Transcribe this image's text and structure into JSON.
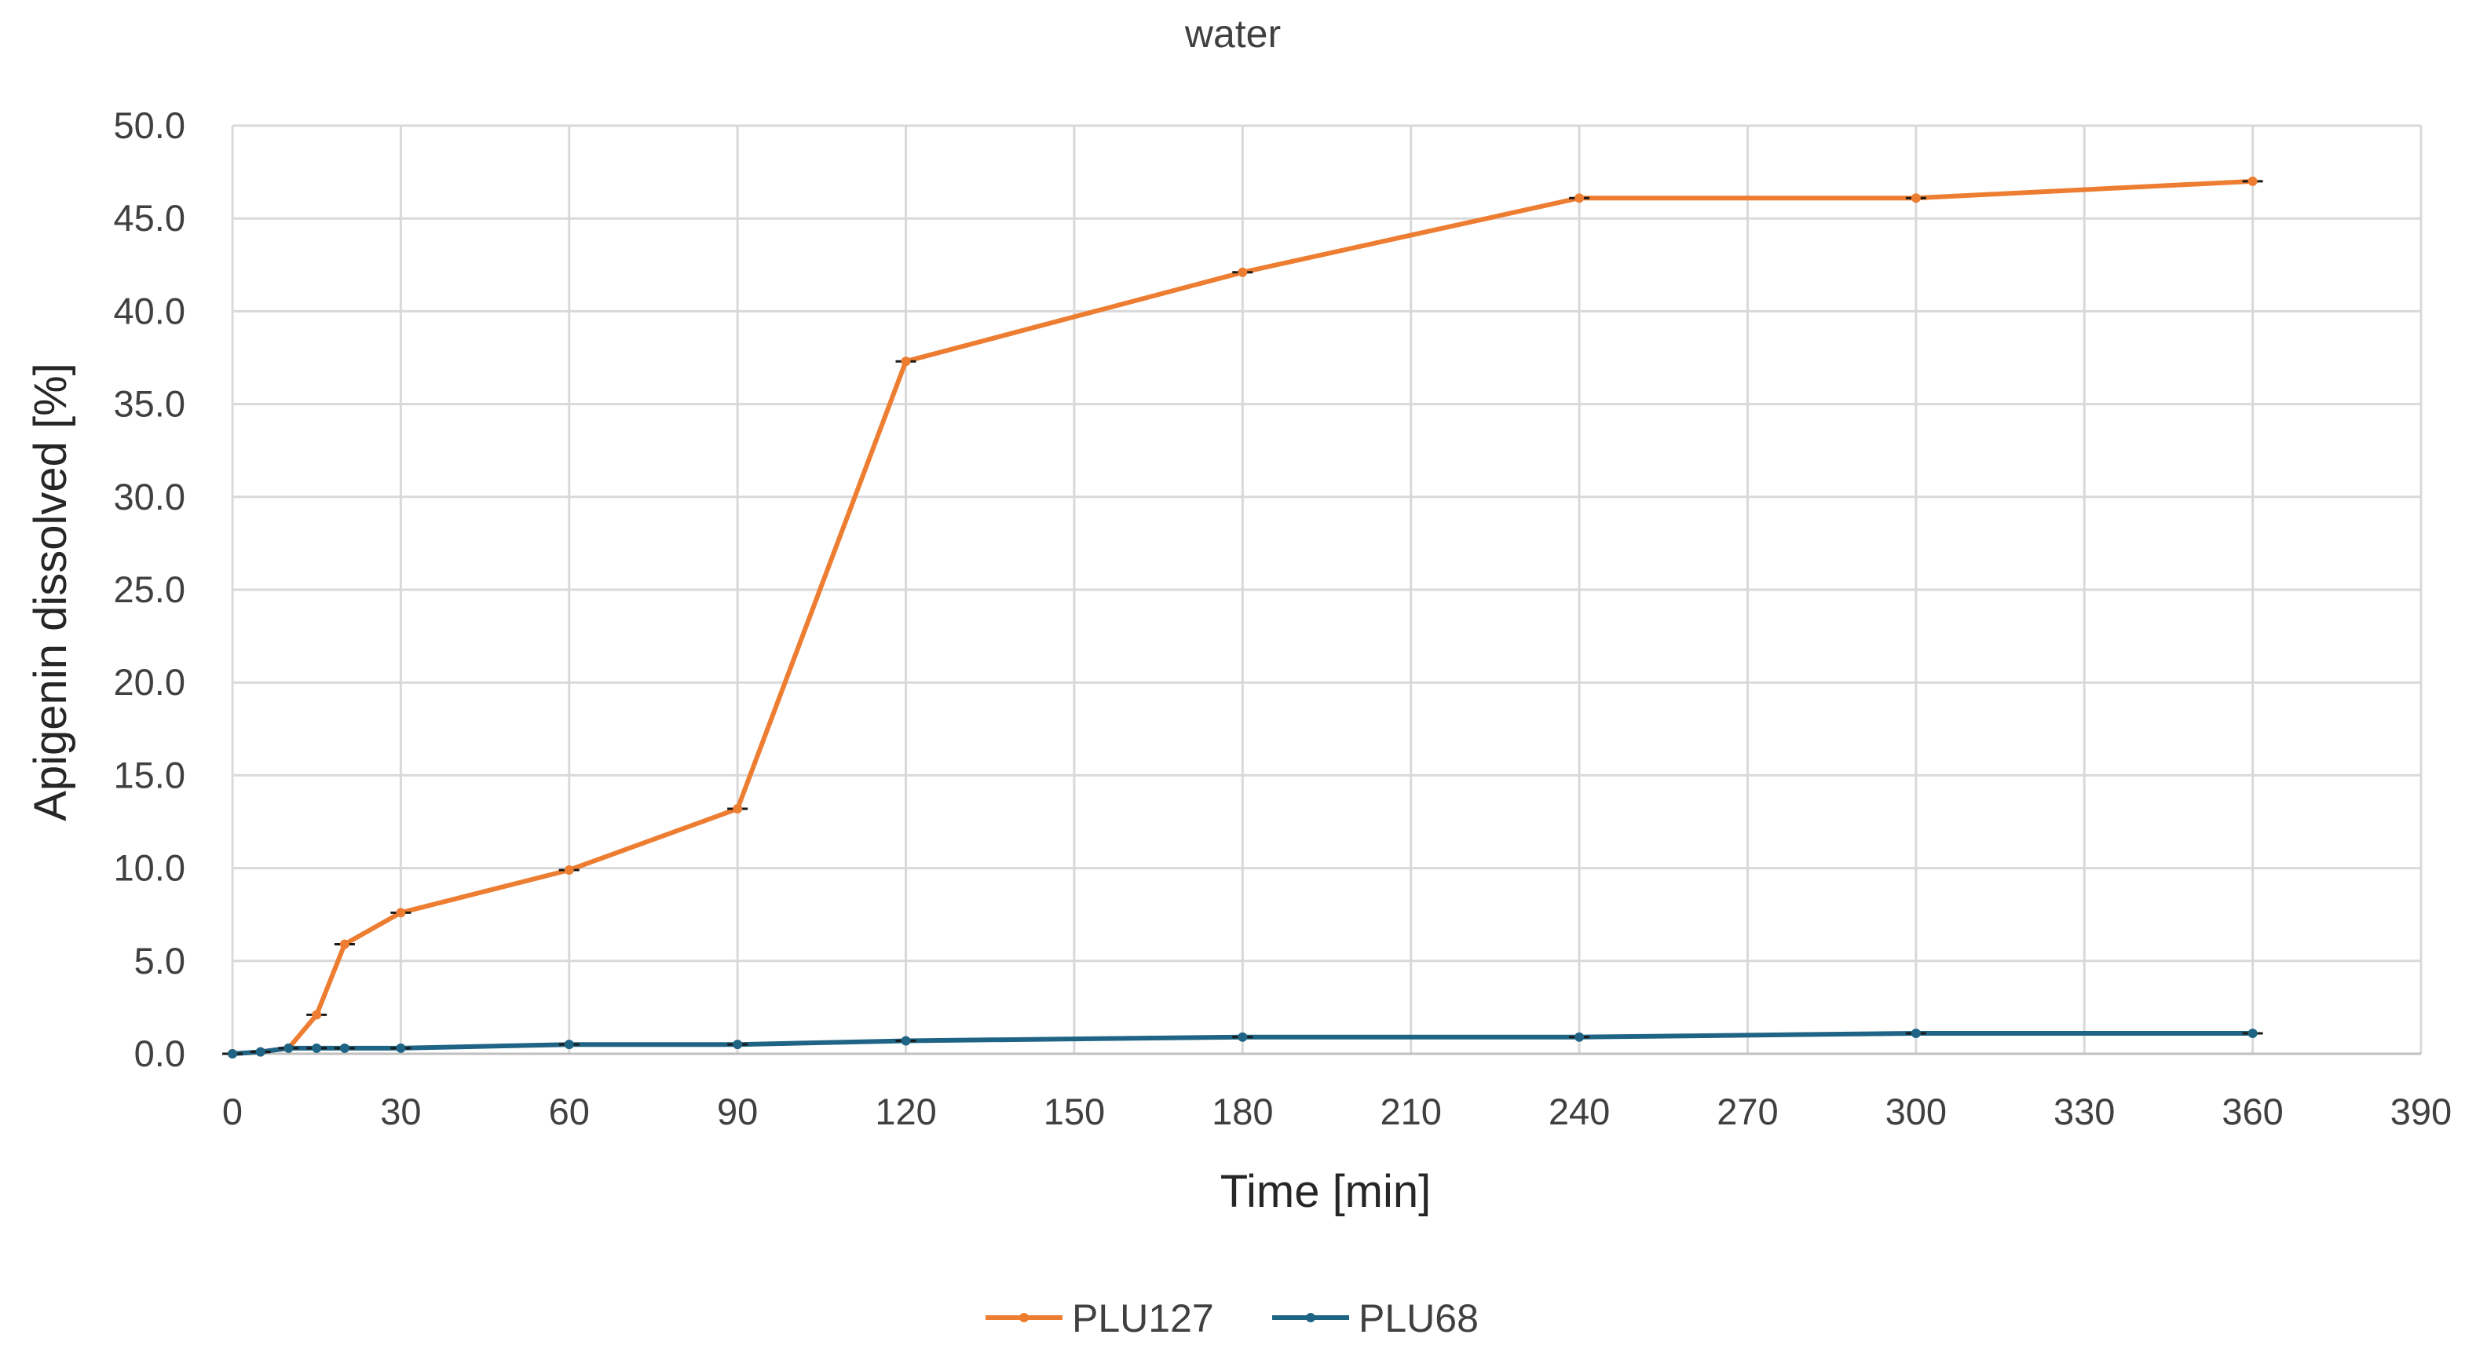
{
  "chart_data": {
    "type": "line",
    "title": "water",
    "xlabel": "Time [min]",
    "ylabel": "Apigenin dissolved [%]",
    "xlim": [
      0,
      390
    ],
    "ylim": [
      0,
      50
    ],
    "xticks": [
      0,
      30,
      60,
      90,
      120,
      150,
      180,
      210,
      240,
      270,
      300,
      330,
      360,
      390
    ],
    "xtick_labels": [
      "0",
      "30",
      "60",
      "90",
      "120",
      "150",
      "180",
      "210",
      "240",
      "270",
      "300",
      "330",
      "360",
      "390"
    ],
    "yticks": [
      0,
      5,
      10,
      15,
      20,
      25,
      30,
      35,
      40,
      45,
      50
    ],
    "ytick_labels": [
      "0.0",
      "5.0",
      "10.0",
      "15.0",
      "20.0",
      "25.0",
      "30.0",
      "35.0",
      "40.0",
      "45.0",
      "50.0"
    ],
    "grid": true,
    "legend_position": "bottom",
    "series": [
      {
        "name": "PLU127",
        "color": "#ED7D31",
        "x": [
          0,
          5,
          10,
          15,
          20,
          30,
          60,
          90,
          120,
          180,
          240,
          300,
          360
        ],
        "y": [
          0.0,
          0.1,
          0.3,
          2.1,
          5.9,
          7.6,
          9.9,
          13.2,
          37.3,
          42.1,
          46.1,
          46.1,
          47.0
        ]
      },
      {
        "name": "PLU68",
        "color": "#1F6485",
        "x": [
          0,
          5,
          10,
          15,
          20,
          30,
          60,
          90,
          120,
          180,
          240,
          300,
          360
        ],
        "y": [
          0.0,
          0.1,
          0.3,
          0.3,
          0.3,
          0.3,
          0.5,
          0.5,
          0.7,
          0.9,
          0.9,
          1.1,
          1.1
        ]
      }
    ]
  }
}
